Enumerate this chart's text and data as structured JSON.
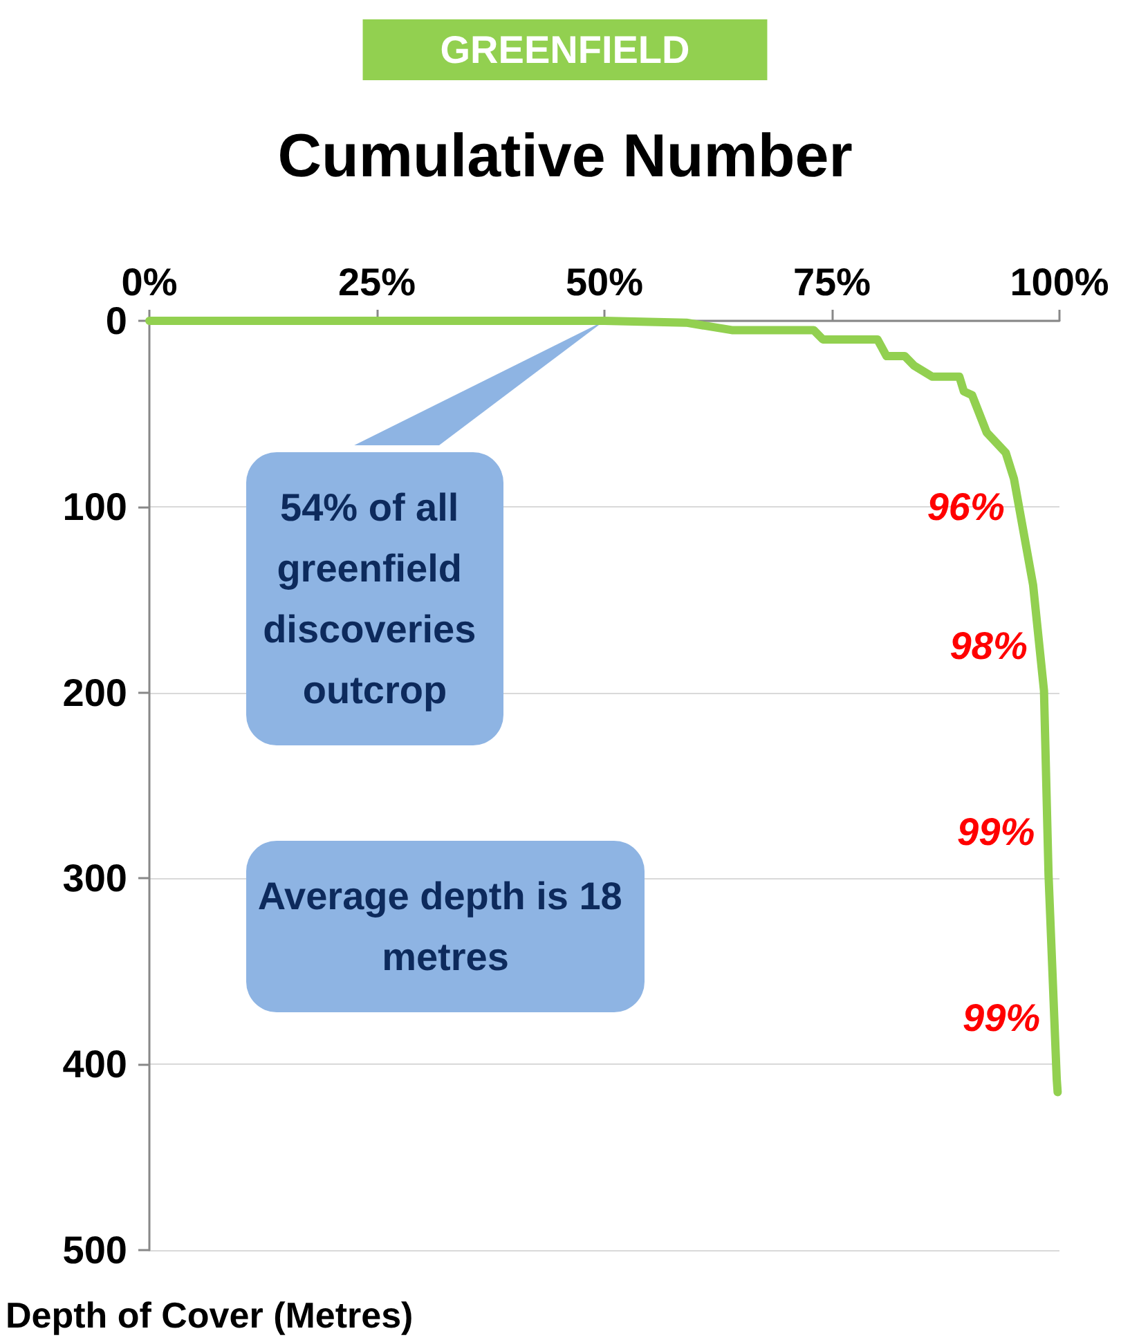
{
  "chart_data": {
    "type": "line",
    "subtitle": "GREENFIELD",
    "title": "Cumulative Number",
    "ylabel": "Depth of Cover (Metres)",
    "x": [
      0,
      50,
      59,
      64,
      73,
      74,
      80,
      81,
      83,
      84,
      86,
      89,
      89.5,
      90.4,
      92,
      94.1,
      95,
      97.1,
      98.3,
      98.8,
      99.7,
      99.8
    ],
    "series": [
      {
        "color": "#92d050",
        "values": [
          0,
          0,
          1,
          5,
          5,
          10,
          10,
          19,
          19,
          24,
          30,
          30,
          38,
          40,
          60,
          71,
          85,
          142,
          199,
          298,
          408,
          415
        ]
      }
    ],
    "xlim": [
      0,
      100
    ],
    "xticks": [
      {
        "value": 0,
        "label": "0%"
      },
      {
        "value": 25,
        "label": "25%"
      },
      {
        "value": 50,
        "label": "50%"
      },
      {
        "value": 75,
        "label": "75%"
      },
      {
        "value": 100,
        "label": "100%"
      }
    ],
    "ylim": [
      500,
      0
    ],
    "yticks": [
      0,
      100,
      200,
      300,
      400,
      500
    ],
    "grid": "y",
    "marker": "none",
    "line_style": "solid",
    "annotations": [
      {
        "text": "54% of all greenfield discoveries outcrop",
        "x": 50,
        "y": 0
      },
      "Average depth is 18 metres",
      {
        "text": "96%",
        "x": 95.5,
        "y": 100
      },
      {
        "text": "98%",
        "x": 98,
        "y": 175
      },
      {
        "text": "99%",
        "x": 98.8,
        "y": 275
      },
      {
        "text": "99%",
        "x": 99.4,
        "y": 375
      }
    ]
  }
}
